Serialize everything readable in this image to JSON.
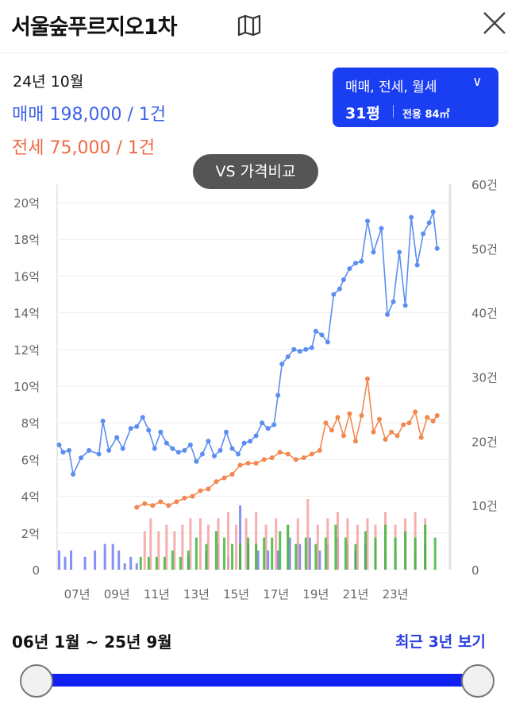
{
  "header": {
    "title": "서울숲푸르지오1차"
  },
  "summary": {
    "date": "24년 10월",
    "sale": "매매 198,000 / 1건",
    "jeonse": "전세 75,000 / 1건"
  },
  "filter": {
    "types": "매매, 전세, 월세",
    "size": "31평",
    "area": "전용 84㎡"
  },
  "vs_button": "VS 가격비교",
  "range_label": "06년 1월 ~ 25년 9월",
  "recent_label": "최근 3년 보기",
  "slider": {
    "start_fraction": 0.0,
    "end_fraction": 1.0
  },
  "colors": {
    "sale": "#5b8ef0",
    "jeonse": "#f2884f",
    "accent": "#1a3ef2",
    "volume_green": "#3cb83c",
    "volume_pink": "#f4a0a0",
    "volume_blue": "#6f7cf2"
  },
  "chart_data": {
    "type": "line",
    "left_axis": {
      "ticks": [
        "0",
        "2억",
        "4억",
        "6억",
        "8억",
        "10억",
        "12억",
        "14억",
        "16억",
        "18억",
        "20억"
      ],
      "ylim": [
        0,
        20
      ]
    },
    "right_axis": {
      "ticks": [
        "0",
        "10건",
        "20건",
        "30건",
        "40건",
        "50건",
        "60건"
      ],
      "ylim": [
        0,
        60
      ]
    },
    "x_ticks": [
      {
        "label": "07년",
        "year": 2007
      },
      {
        "label": "09년",
        "year": 2009
      },
      {
        "label": "11년",
        "year": 2011
      },
      {
        "label": "13년",
        "year": 2013
      },
      {
        "label": "15년",
        "year": 2015
      },
      {
        "label": "17년",
        "year": 2017
      },
      {
        "label": "19년",
        "year": 2019
      },
      {
        "label": "21년",
        "year": 2021
      },
      {
        "label": "23년",
        "year": 2023
      }
    ],
    "xlim": [
      2006,
      2025.75
    ],
    "series": [
      {
        "key": "sale",
        "points": [
          [
            2006.1,
            6.8
          ],
          [
            2006.3,
            6.4
          ],
          [
            2006.6,
            6.5
          ],
          [
            2006.8,
            5.2
          ],
          [
            2007.2,
            6.1
          ],
          [
            2007.6,
            6.5
          ],
          [
            2008.1,
            6.3
          ],
          [
            2008.3,
            8.1
          ],
          [
            2008.6,
            6.5
          ],
          [
            2009.0,
            7.2
          ],
          [
            2009.3,
            6.6
          ],
          [
            2009.7,
            7.7
          ],
          [
            2010.0,
            7.8
          ],
          [
            2010.3,
            8.3
          ],
          [
            2010.6,
            7.6
          ],
          [
            2010.9,
            6.6
          ],
          [
            2011.2,
            7.5
          ],
          [
            2011.5,
            6.9
          ],
          [
            2011.8,
            6.6
          ],
          [
            2012.1,
            6.4
          ],
          [
            2012.4,
            6.5
          ],
          [
            2012.7,
            6.8
          ],
          [
            2013.0,
            5.9
          ],
          [
            2013.3,
            6.3
          ],
          [
            2013.6,
            7.0
          ],
          [
            2013.9,
            6.2
          ],
          [
            2014.2,
            6.5
          ],
          [
            2014.5,
            7.5
          ],
          [
            2014.8,
            6.6
          ],
          [
            2015.1,
            6.3
          ],
          [
            2015.4,
            6.9
          ],
          [
            2015.7,
            7.0
          ],
          [
            2016.0,
            7.3
          ],
          [
            2016.3,
            8.0
          ],
          [
            2016.6,
            7.7
          ],
          [
            2016.9,
            7.9
          ],
          [
            2017.1,
            9.5
          ],
          [
            2017.3,
            11.2
          ],
          [
            2017.6,
            11.6
          ],
          [
            2017.9,
            12.0
          ],
          [
            2018.2,
            11.9
          ],
          [
            2018.5,
            12.0
          ],
          [
            2018.8,
            12.1
          ],
          [
            2019.0,
            13.0
          ],
          [
            2019.3,
            12.8
          ],
          [
            2019.6,
            12.4
          ],
          [
            2019.9,
            15.0
          ],
          [
            2020.2,
            15.3
          ],
          [
            2020.4,
            15.8
          ],
          [
            2020.7,
            16.4
          ],
          [
            2021.0,
            16.7
          ],
          [
            2021.3,
            16.8
          ],
          [
            2021.6,
            19.0
          ],
          [
            2021.9,
            17.3
          ],
          [
            2022.3,
            18.6
          ],
          [
            2022.6,
            13.9
          ],
          [
            2022.9,
            14.6
          ],
          [
            2023.2,
            17.3
          ],
          [
            2023.5,
            14.4
          ],
          [
            2023.8,
            19.2
          ],
          [
            2024.1,
            16.6
          ],
          [
            2024.4,
            18.3
          ],
          [
            2024.7,
            18.9
          ],
          [
            2024.9,
            19.5
          ],
          [
            2025.1,
            17.5
          ]
        ]
      },
      {
        "key": "jeonse",
        "points": [
          [
            2010.0,
            3.4
          ],
          [
            2010.4,
            3.6
          ],
          [
            2010.8,
            3.5
          ],
          [
            2011.2,
            3.7
          ],
          [
            2011.6,
            3.5
          ],
          [
            2012.0,
            3.7
          ],
          [
            2012.4,
            3.9
          ],
          [
            2012.8,
            4.0
          ],
          [
            2013.2,
            4.3
          ],
          [
            2013.6,
            4.4
          ],
          [
            2014.0,
            4.8
          ],
          [
            2014.4,
            5.0
          ],
          [
            2014.8,
            5.2
          ],
          [
            2015.2,
            5.7
          ],
          [
            2015.6,
            5.8
          ],
          [
            2016.0,
            5.8
          ],
          [
            2016.4,
            6.0
          ],
          [
            2016.8,
            6.1
          ],
          [
            2017.2,
            6.4
          ],
          [
            2017.6,
            6.3
          ],
          [
            2018.0,
            6.0
          ],
          [
            2018.4,
            6.1
          ],
          [
            2018.8,
            6.3
          ],
          [
            2019.2,
            6.5
          ],
          [
            2019.5,
            8.0
          ],
          [
            2019.8,
            7.6
          ],
          [
            2020.1,
            8.3
          ],
          [
            2020.4,
            7.3
          ],
          [
            2020.7,
            8.5
          ],
          [
            2021.0,
            7.0
          ],
          [
            2021.3,
            8.4
          ],
          [
            2021.6,
            10.4
          ],
          [
            2021.9,
            7.5
          ],
          [
            2022.2,
            8.2
          ],
          [
            2022.5,
            7.1
          ],
          [
            2022.8,
            7.5
          ],
          [
            2023.1,
            7.3
          ],
          [
            2023.4,
            7.9
          ],
          [
            2023.7,
            8.0
          ],
          [
            2024.0,
            8.6
          ],
          [
            2024.3,
            7.2
          ],
          [
            2024.6,
            8.3
          ],
          [
            2024.9,
            8.1
          ],
          [
            2025.1,
            8.4
          ]
        ]
      }
    ],
    "volume": [
      {
        "key": "volume_blue",
        "bars": [
          [
            2006.1,
            3
          ],
          [
            2006.4,
            2
          ],
          [
            2006.7,
            3
          ],
          [
            2007.4,
            2
          ],
          [
            2007.9,
            3
          ],
          [
            2008.4,
            4
          ],
          [
            2008.8,
            4
          ],
          [
            2009.1,
            3
          ],
          [
            2009.4,
            1
          ],
          [
            2009.7,
            2
          ],
          [
            2010.0,
            1
          ],
          [
            2012.6,
            2
          ],
          [
            2013.5,
            3
          ],
          [
            2014.1,
            4
          ],
          [
            2014.6,
            2
          ],
          [
            2015.2,
            10
          ],
          [
            2015.6,
            4
          ],
          [
            2016.1,
            3
          ],
          [
            2016.6,
            3
          ],
          [
            2017.1,
            3
          ],
          [
            2017.7,
            5
          ],
          [
            2018.2,
            4
          ],
          [
            2018.7,
            5
          ],
          [
            2019.2,
            3
          ],
          [
            2019.6,
            4
          ],
          [
            2020.1,
            5
          ],
          [
            2020.6,
            4
          ],
          [
            2021.0,
            3
          ],
          [
            2021.5,
            4
          ],
          [
            2022.0,
            4
          ],
          [
            2022.5,
            3
          ],
          [
            2023.0,
            3
          ],
          [
            2023.5,
            5
          ],
          [
            2024.0,
            3
          ],
          [
            2024.5,
            4
          ]
        ]
      },
      {
        "key": "volume_pink",
        "bars": [
          [
            2010.4,
            6
          ],
          [
            2010.7,
            8
          ],
          [
            2011.1,
            6
          ],
          [
            2011.5,
            7
          ],
          [
            2011.9,
            6
          ],
          [
            2012.3,
            7
          ],
          [
            2012.7,
            8
          ],
          [
            2013.2,
            8
          ],
          [
            2013.6,
            7
          ],
          [
            2014.1,
            8
          ],
          [
            2014.6,
            9
          ],
          [
            2015.0,
            7
          ],
          [
            2015.5,
            8
          ],
          [
            2016.0,
            9
          ],
          [
            2016.5,
            7
          ],
          [
            2017.0,
            8
          ],
          [
            2017.6,
            7
          ],
          [
            2018.1,
            8
          ],
          [
            2018.6,
            11
          ],
          [
            2019.1,
            7
          ],
          [
            2019.6,
            8
          ],
          [
            2020.1,
            9
          ],
          [
            2020.6,
            8
          ],
          [
            2021.1,
            7
          ],
          [
            2021.6,
            8
          ],
          [
            2022.0,
            7
          ],
          [
            2022.5,
            9
          ],
          [
            2023.0,
            7
          ],
          [
            2023.5,
            8
          ],
          [
            2024.0,
            9
          ],
          [
            2024.5,
            8
          ]
        ]
      },
      {
        "key": "volume_green",
        "bars": [
          [
            2010.2,
            2
          ],
          [
            2010.6,
            2
          ],
          [
            2011.0,
            2
          ],
          [
            2011.4,
            2
          ],
          [
            2011.8,
            3
          ],
          [
            2012.2,
            2
          ],
          [
            2012.6,
            3
          ],
          [
            2013.0,
            5
          ],
          [
            2013.5,
            4
          ],
          [
            2014.0,
            6
          ],
          [
            2014.4,
            5
          ],
          [
            2014.8,
            4
          ],
          [
            2015.2,
            4
          ],
          [
            2015.6,
            5
          ],
          [
            2016.0,
            4
          ],
          [
            2016.4,
            5
          ],
          [
            2016.8,
            5
          ],
          [
            2017.2,
            6
          ],
          [
            2017.6,
            7
          ],
          [
            2018.0,
            4
          ],
          [
            2018.5,
            5
          ],
          [
            2019.0,
            4
          ],
          [
            2019.5,
            5
          ],
          [
            2020.0,
            7
          ],
          [
            2020.5,
            5
          ],
          [
            2021.0,
            4
          ],
          [
            2021.5,
            6
          ],
          [
            2022.0,
            5
          ],
          [
            2022.5,
            7
          ],
          [
            2023.0,
            5
          ],
          [
            2023.5,
            6
          ],
          [
            2024.0,
            5
          ],
          [
            2024.5,
            7
          ],
          [
            2025.0,
            5
          ]
        ]
      }
    ]
  }
}
